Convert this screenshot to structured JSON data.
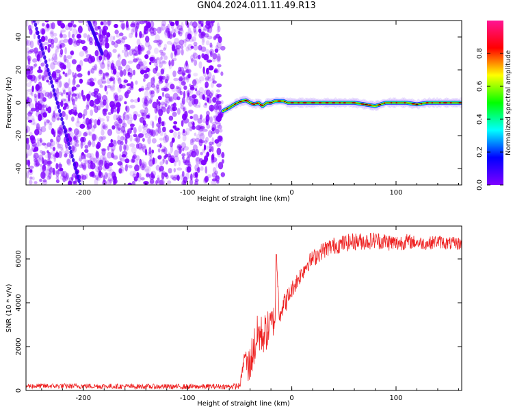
{
  "title": "GN04.2024.011.11.49.R13",
  "colors": {
    "noise": "#7f00ff",
    "snr_line": "#ee2222",
    "frame": "#000000"
  },
  "chart_data": [
    {
      "type": "heatmap",
      "xlabel": "Height of straight line (km)",
      "ylabel": "Frequency (Hz)",
      "xlim": [
        -255,
        163
      ],
      "ylim": [
        -50,
        50
      ],
      "xticks": [
        -200,
        -100,
        0,
        100
      ],
      "xtick_labels": [
        "-200",
        "-100",
        "0",
        "100"
      ],
      "yticks": [
        -40,
        -20,
        0,
        20,
        40
      ],
      "ytick_labels": [
        "-40",
        "-20",
        "0",
        "20",
        "40"
      ],
      "noise_region_x": [
        -255,
        -66
      ],
      "signal_track": {
        "x": [
          -66,
          -60,
          -55,
          -52,
          -48,
          -44,
          -40,
          -36,
          -32,
          -28,
          -24,
          -20,
          -16,
          -12,
          -8,
          -4,
          0,
          20,
          40,
          60,
          70,
          80,
          90,
          100,
          110,
          120,
          130,
          140,
          150,
          163
        ],
        "freq_hz": [
          -5,
          -3,
          -1,
          0,
          1,
          1.5,
          0,
          -1,
          0,
          -2,
          0,
          0,
          1,
          1,
          1,
          0,
          0,
          0,
          0,
          0,
          -1,
          -2,
          0,
          0,
          0,
          -1,
          0,
          0,
          0,
          0
        ]
      },
      "diagonal_features": [
        {
          "x": [
            -247,
            -203
          ],
          "freq_hz": [
            50,
            -50
          ]
        },
        {
          "x": [
            -195,
            -182
          ],
          "freq_hz": [
            50,
            30
          ]
        }
      ],
      "colorbar": {
        "label": "Normalized spectral amplitude",
        "range": [
          0,
          1
        ],
        "ticks": [
          0,
          0.2,
          0.4,
          0.6,
          0.8
        ],
        "tick_labels": [
          "0.0",
          "0.2",
          "0.4",
          "0.6",
          "0.8"
        ],
        "colors": [
          "#7f00ff",
          "#0000ff",
          "#00ffff",
          "#00ff00",
          "#ffff00",
          "#ff0000",
          "#ff1493"
        ]
      }
    },
    {
      "type": "line",
      "xlabel": "Height of straight line (km)",
      "ylabel": "SNR (10 * v/v)",
      "xlim": [
        -255,
        163
      ],
      "ylim": [
        0,
        7500
      ],
      "xticks": [
        -200,
        -100,
        0,
        100
      ],
      "xtick_labels": [
        "-200",
        "-100",
        "0",
        "100"
      ],
      "yticks": [
        0,
        2000,
        4000,
        6000
      ],
      "ytick_labels": [
        "0",
        "2000",
        "4000",
        "6000"
      ],
      "series": [
        {
          "x": [
            -255,
            -200,
            -150,
            -100,
            -60,
            -50,
            -48,
            -45,
            -42,
            -40,
            -36,
            -32,
            -28,
            -24,
            -20,
            -16,
            -15,
            -12,
            -8,
            -4,
            0,
            5,
            10,
            15,
            20,
            25,
            30,
            40,
            50,
            60,
            70,
            80,
            90,
            100,
            110,
            120,
            130,
            140,
            150,
            163
          ],
          "y": [
            200,
            200,
            180,
            170,
            180,
            200,
            700,
            1700,
            900,
            1300,
            2000,
            2600,
            2500,
            2700,
            3000,
            3300,
            6200,
            3600,
            3900,
            4200,
            4600,
            5000,
            5400,
            5800,
            6000,
            6200,
            6400,
            6600,
            6700,
            6800,
            6800,
            6850,
            6800,
            6700,
            6800,
            6750,
            6700,
            6800,
            6700,
            6700
          ],
          "noise_amplitude": [
            120,
            120,
            120,
            120,
            120,
            150,
            200,
            300,
            900,
            900,
            1000,
            1000,
            900,
            900,
            800,
            700,
            0,
            600,
            500,
            500,
            400,
            400,
            400,
            400,
            400,
            400,
            400,
            400,
            400,
            400,
            400,
            400,
            400,
            400,
            350,
            300,
            300,
            300,
            300,
            300
          ]
        }
      ]
    }
  ]
}
